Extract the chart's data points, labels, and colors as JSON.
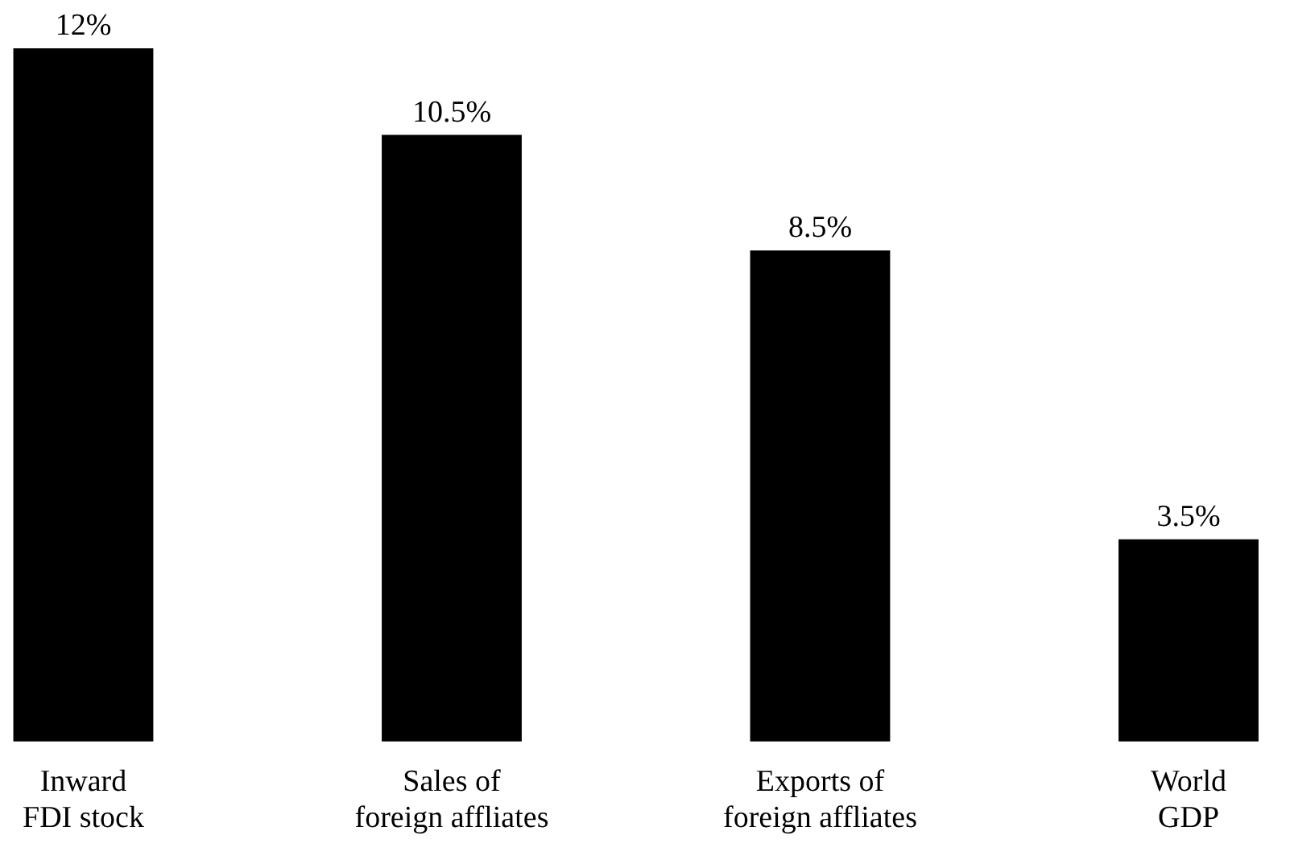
{
  "chart_data": {
    "type": "bar",
    "categories": [
      "Inward\nFDI stock",
      "Sales of\nforeign affliates",
      "Exports of\nforeign affliates",
      "World\nGDP"
    ],
    "values": [
      12,
      10.5,
      8.5,
      3.5
    ],
    "color": "#000000",
    "value_labels": [
      "12%",
      "10.5%",
      "8.5%",
      "3.5%"
    ],
    "grid": false,
    "legend": false
  }
}
